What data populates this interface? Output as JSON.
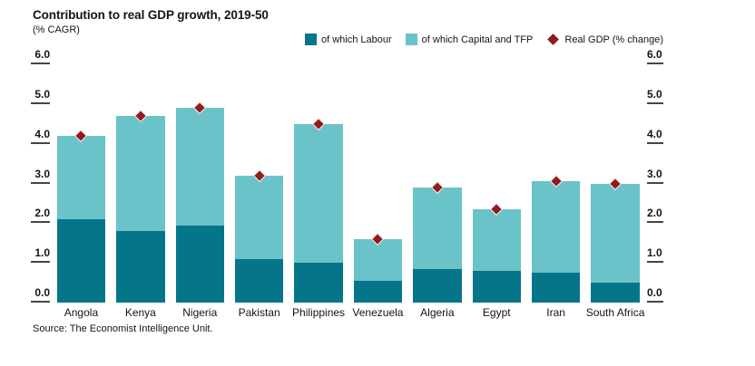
{
  "chart_data": {
    "type": "bar",
    "subtype": "stacked-bars-with-diamond-point-overlay",
    "title": "Contribution to real GDP growth, 2019-50",
    "subtitle": "(% CAGR)",
    "categories": [
      "Angola",
      "Kenya",
      "Nigeria",
      "Pakistan",
      "Philippines",
      "Venezuela",
      "Algeria",
      "Egypt",
      "Iran",
      "South Africa"
    ],
    "series": [
      {
        "name": "of which Labour",
        "color": "#05758a",
        "values": [
          2.1,
          1.8,
          1.95,
          1.1,
          1.0,
          0.55,
          0.85,
          0.8,
          0.75,
          0.5
        ]
      },
      {
        "name": "of which Capital and TFP",
        "color": "#6ac3c9",
        "values": [
          2.1,
          2.9,
          2.95,
          2.1,
          3.5,
          1.05,
          2.05,
          1.55,
          2.3,
          2.5
        ]
      }
    ],
    "points": {
      "name": "Real GDP (% change)",
      "color": "#8e1d1d",
      "marker": "diamond",
      "values": [
        4.2,
        4.7,
        4.9,
        3.2,
        4.5,
        1.6,
        2.9,
        2.35,
        3.05,
        3.0
      ]
    },
    "ylim": [
      0,
      6
    ],
    "ytick_step": 1.0,
    "tick_labels": [
      "0.0",
      "1.0",
      "2.0",
      "3.0",
      "4.0",
      "5.0",
      "6.0"
    ],
    "y_axis_sides": "left-and-right",
    "grid": false,
    "legend_position": "top-right",
    "source": "Source: The Economist Intelligence Unit.",
    "text_color": "#141414",
    "tick_dash_color": "#454545"
  }
}
